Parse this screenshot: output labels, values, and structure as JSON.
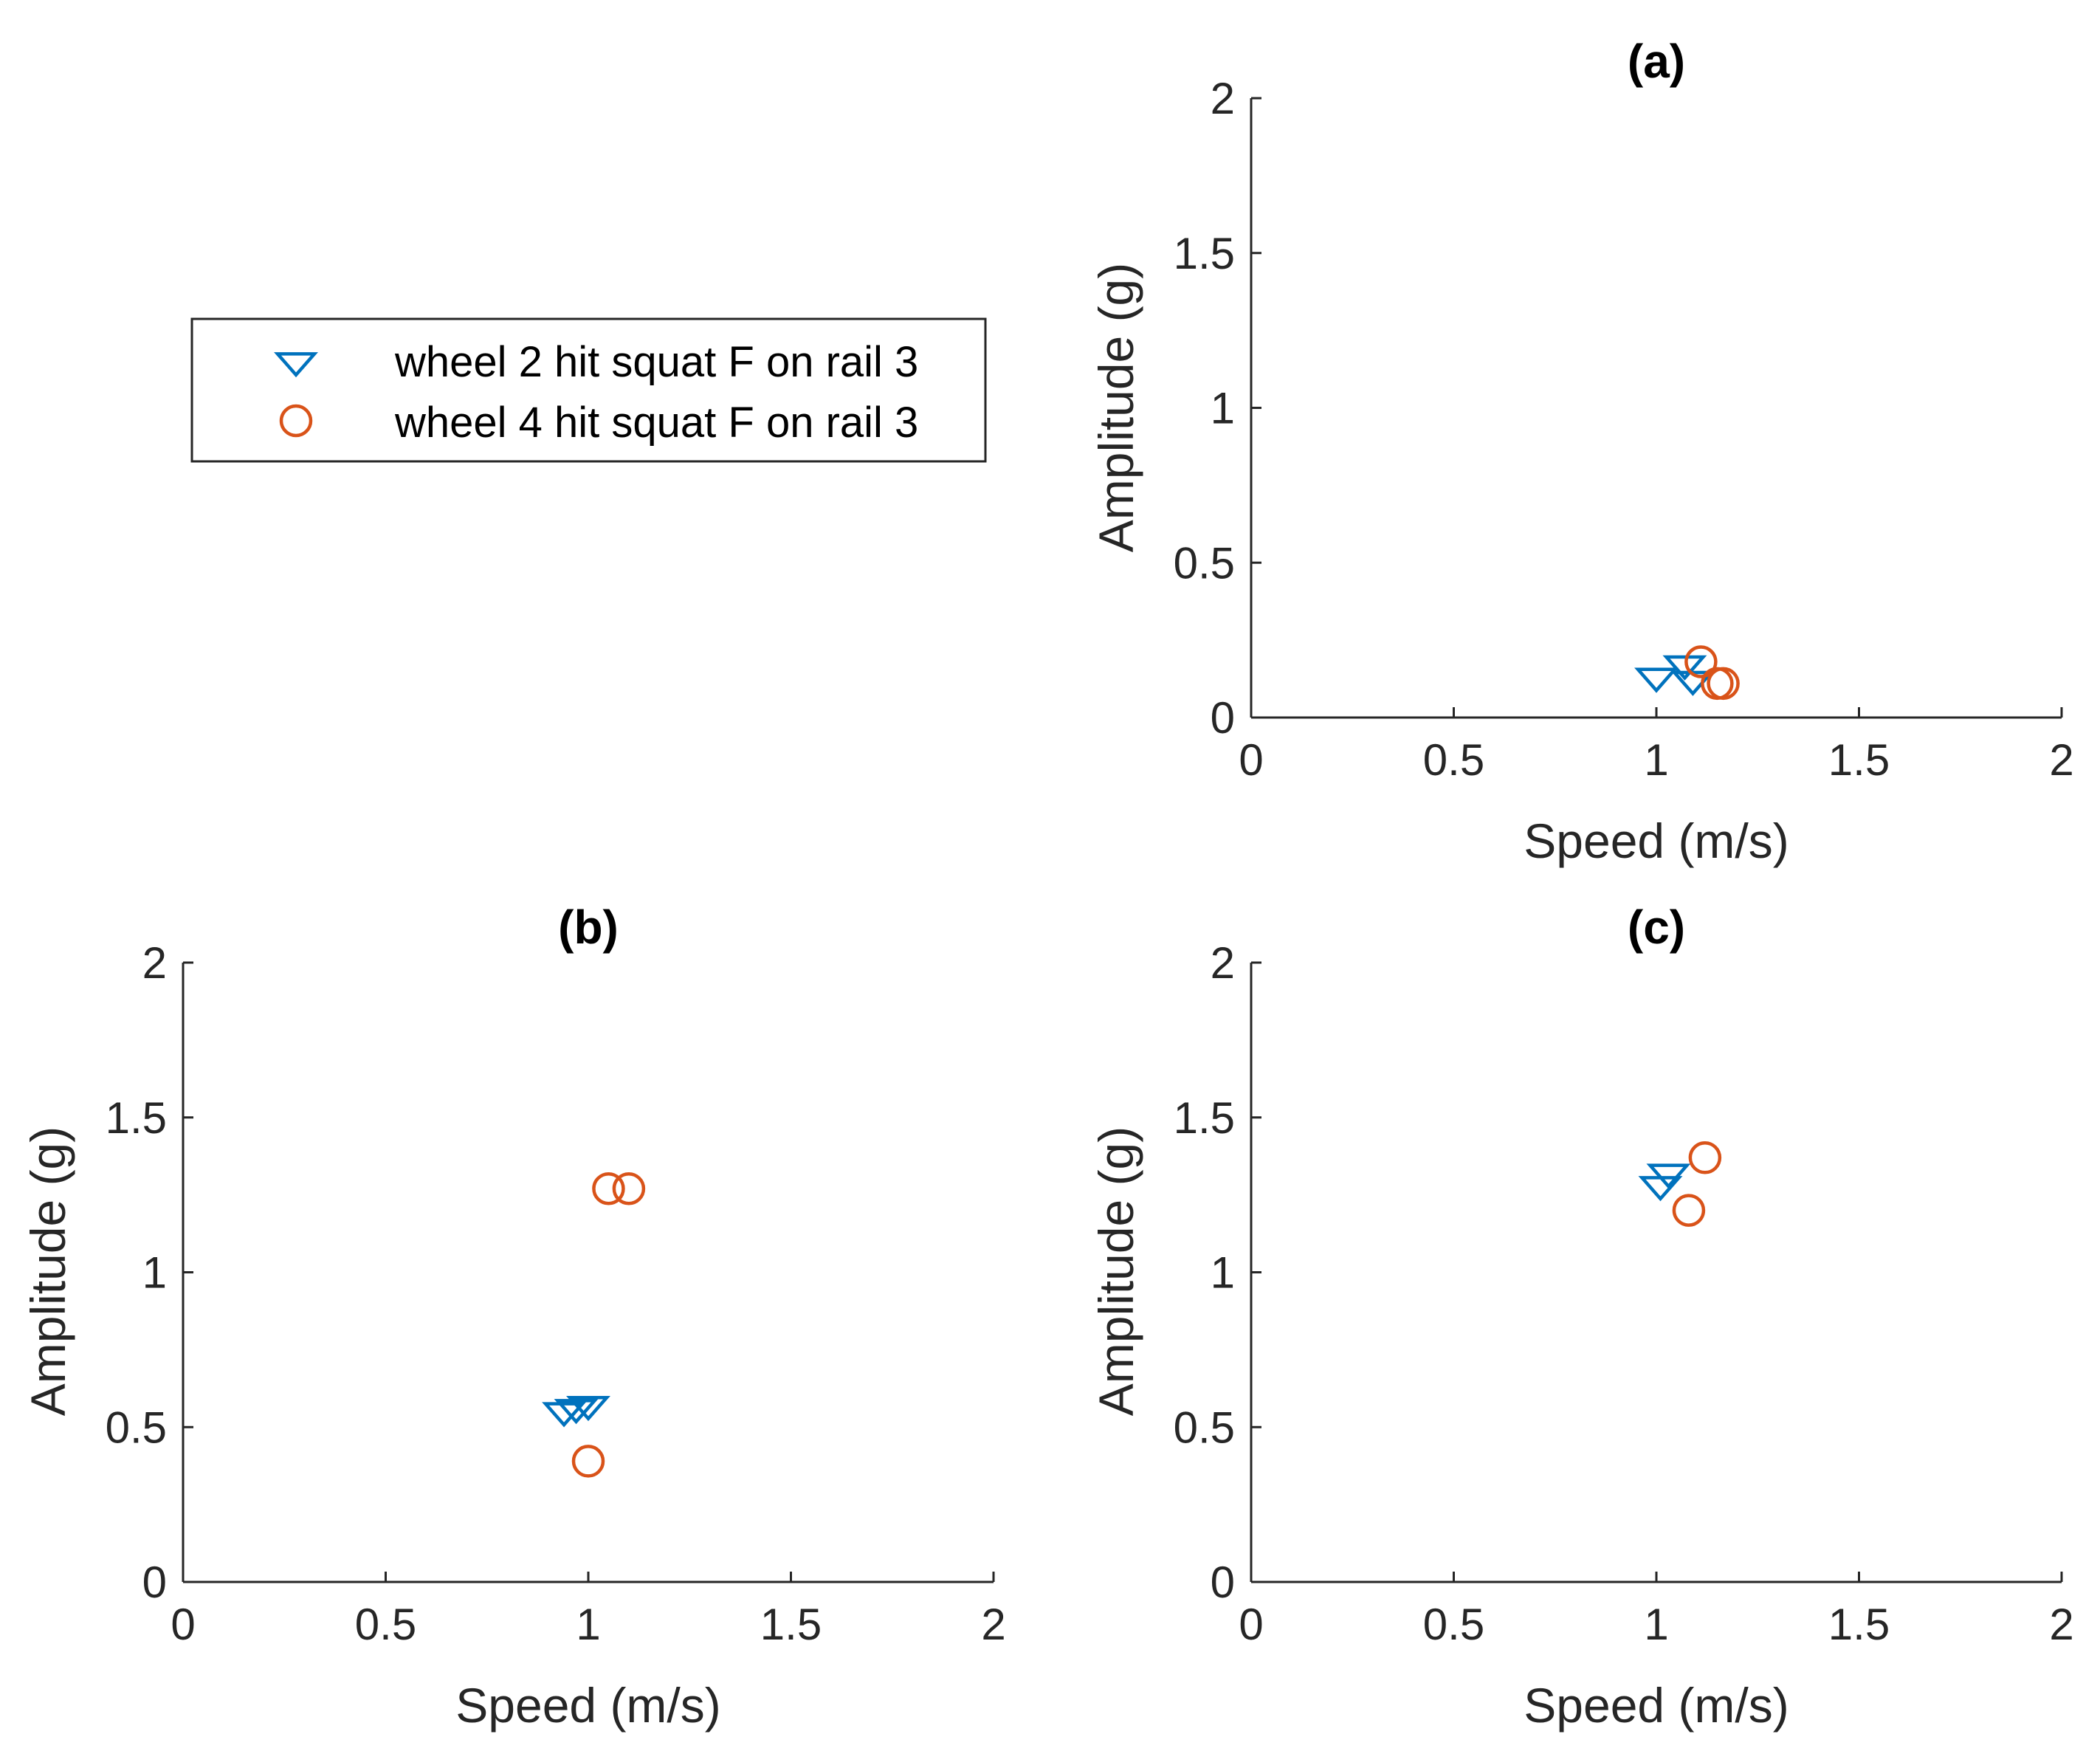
{
  "chart_data": [
    {
      "type": "scatter",
      "title": "(a)",
      "xlabel": "Speed (m/s)",
      "ylabel": "Amplitude (g)",
      "xlim": [
        0,
        2
      ],
      "ylim": [
        0,
        2
      ],
      "xticks": [
        0,
        0.5,
        1,
        1.5,
        2
      ],
      "yticks": [
        0,
        0.5,
        1,
        1.5,
        2
      ],
      "xtick_labels": [
        "0",
        "0.5",
        "1",
        "1.5",
        "2"
      ],
      "ytick_labels": [
        "0",
        "0.5",
        "1",
        "1.5",
        "2"
      ],
      "series": [
        {
          "name": "wheel 2 hit squat F on rail 3",
          "marker": "triangle-down",
          "color": "#0072BD",
          "points": [
            {
              "x": 1.0,
              "y": 0.13
            },
            {
              "x": 1.07,
              "y": 0.17
            },
            {
              "x": 1.09,
              "y": 0.12
            }
          ]
        },
        {
          "name": "wheel 4 hit squat F on rail 3",
          "marker": "circle",
          "color": "#D95319",
          "points": [
            {
              "x": 1.11,
              "y": 0.18
            },
            {
              "x": 1.15,
              "y": 0.11
            },
            {
              "x": 1.165,
              "y": 0.11
            }
          ]
        }
      ]
    },
    {
      "type": "scatter",
      "title": "(b)",
      "xlabel": "Speed (m/s)",
      "ylabel": "Amplitude (g)",
      "xlim": [
        0,
        2
      ],
      "ylim": [
        0,
        2
      ],
      "xticks": [
        0,
        0.5,
        1,
        1.5,
        2
      ],
      "yticks": [
        0,
        0.5,
        1,
        1.5,
        2
      ],
      "xtick_labels": [
        "0",
        "0.5",
        "1",
        "1.5",
        "2"
      ],
      "ytick_labels": [
        "0",
        "0.5",
        "1",
        "1.5",
        "2"
      ],
      "series": [
        {
          "name": "wheel 2 hit squat F on rail 3",
          "marker": "triangle-down",
          "color": "#0072BD",
          "points": [
            {
              "x": 0.94,
              "y": 0.55
            },
            {
              "x": 0.97,
              "y": 0.56
            },
            {
              "x": 1.0,
              "y": 0.57
            }
          ]
        },
        {
          "name": "wheel 4 hit squat F on rail 3",
          "marker": "circle",
          "color": "#D95319",
          "points": [
            {
              "x": 1.05,
              "y": 1.27
            },
            {
              "x": 1.1,
              "y": 1.27
            },
            {
              "x": 1.0,
              "y": 0.39
            }
          ]
        }
      ]
    },
    {
      "type": "scatter",
      "title": "(c)",
      "xlabel": "Speed (m/s)",
      "ylabel": "Amplitude (g)",
      "xlim": [
        0,
        2
      ],
      "ylim": [
        0,
        2
      ],
      "xticks": [
        0,
        0.5,
        1,
        1.5,
        2
      ],
      "yticks": [
        0,
        0.5,
        1,
        1.5,
        2
      ],
      "xtick_labels": [
        "0",
        "0.5",
        "1",
        "1.5",
        "2"
      ],
      "ytick_labels": [
        "0",
        "0.5",
        "1",
        "1.5",
        "2"
      ],
      "series": [
        {
          "name": "wheel 2 hit squat F on rail 3",
          "marker": "triangle-down",
          "color": "#0072BD",
          "points": [
            {
              "x": 1.01,
              "y": 1.28
            },
            {
              "x": 1.03,
              "y": 1.32
            }
          ]
        },
        {
          "name": "wheel 4 hit squat F on rail 3",
          "marker": "circle",
          "color": "#D95319",
          "points": [
            {
              "x": 1.12,
              "y": 1.37
            },
            {
              "x": 1.08,
              "y": 1.2
            }
          ]
        }
      ]
    }
  ],
  "legend": {
    "placement": "top-left",
    "entries": [
      {
        "label": "wheel 2 hit squat F on rail 3",
        "marker": "triangle-down",
        "color": "#0072BD"
      },
      {
        "label": "wheel 4 hit squat F on rail 3",
        "marker": "circle",
        "color": "#D95319"
      }
    ]
  }
}
